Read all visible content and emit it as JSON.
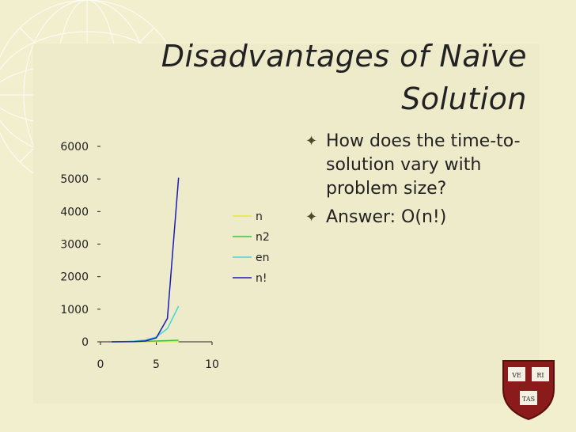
{
  "slide": {
    "title_line1": "Disadvantages of Naïve",
    "title_line2": "Solution",
    "bullets": [
      "How does the time-to-solution vary with problem size?",
      "Answer: O(n!)"
    ],
    "logo_text": [
      "VE",
      "RI",
      "TAS"
    ]
  },
  "colors": {
    "n": "#e8e840",
    "n2": "#40c040",
    "en": "#40d8d8",
    "nfact": "#1a1ab8"
  },
  "chart_data": {
    "type": "line",
    "x": [
      1,
      2,
      3,
      4,
      5,
      6,
      7
    ],
    "xticks": [
      0,
      5,
      10
    ],
    "yticks": [
      0,
      1000,
      2000,
      3000,
      4000,
      5000,
      6000
    ],
    "xlim": [
      0,
      10
    ],
    "ylim": [
      0,
      6000
    ],
    "legend_position": "right",
    "series": [
      {
        "name": "n",
        "values": [
          1,
          2,
          3,
          4,
          5,
          6,
          7
        ]
      },
      {
        "name": "n2",
        "values": [
          1,
          4,
          9,
          16,
          25,
          36,
          49
        ]
      },
      {
        "name": "en",
        "values": [
          2.7,
          7.4,
          20.1,
          54.6,
          148.4,
          403.4,
          1096.6
        ]
      },
      {
        "name": "n!",
        "values": [
          1,
          2,
          6,
          24,
          120,
          720,
          5040
        ]
      }
    ]
  }
}
